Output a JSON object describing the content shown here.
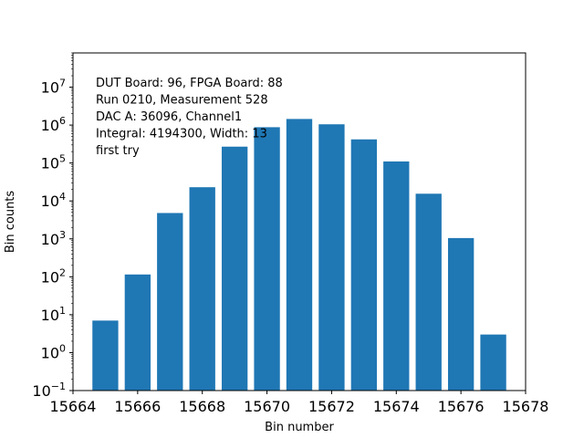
{
  "chart_data": {
    "type": "bar",
    "title": "",
    "xlabel": "Bin number",
    "ylabel": "Bin counts",
    "y_scale": "log",
    "xlim": [
      15664,
      15678
    ],
    "ylim": [
      0.1,
      80000000
    ],
    "x_ticks": [
      15664,
      15666,
      15668,
      15670,
      15672,
      15674,
      15676,
      15678
    ],
    "x_tick_labels": [
      "15664",
      "15666",
      "15668",
      "15670",
      "15672",
      "15674",
      "15676",
      "15678"
    ],
    "y_ticks": [
      {
        "value": 0.1,
        "base": "10",
        "exp": "−1"
      },
      {
        "value": 1,
        "base": "10",
        "exp": "0"
      },
      {
        "value": 10,
        "base": "10",
        "exp": "1"
      },
      {
        "value": 100,
        "base": "10",
        "exp": "2"
      },
      {
        "value": 1000,
        "base": "10",
        "exp": "3"
      },
      {
        "value": 10000,
        "base": "10",
        "exp": "4"
      },
      {
        "value": 100000,
        "base": "10",
        "exp": "5"
      },
      {
        "value": 1000000,
        "base": "10",
        "exp": "6"
      },
      {
        "value": 10000000,
        "base": "10",
        "exp": "7"
      }
    ],
    "x": [
      15665,
      15666,
      15667,
      15668,
      15669,
      15670,
      15671,
      15672,
      15673,
      15674,
      15675,
      15676,
      15677
    ],
    "values": [
      7,
      115,
      4800,
      23000,
      270000,
      880000,
      1450000,
      1050000,
      420000,
      110000,
      15500,
      1050,
      3
    ],
    "bar_color": "#1f77b4",
    "grid": false,
    "annotation_lines": [
      "DUT Board: 96, FPGA Board: 88",
      "Run 0210, Measurement 528",
      "DAC A: 36096, Channel1",
      "Integral: 4194300, Width: 13",
      "first try"
    ]
  }
}
